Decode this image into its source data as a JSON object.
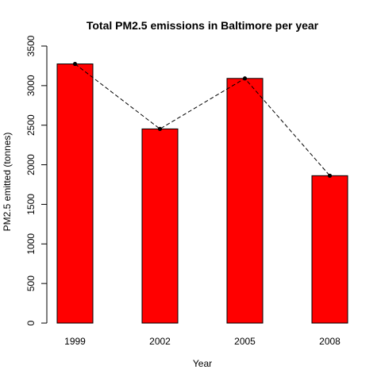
{
  "chart_data": {
    "type": "bar",
    "title": "Total PM2.5 emissions in Baltimore per year",
    "xlabel": "Year",
    "ylabel": "PM2.5 emitted (tonnes)",
    "categories": [
      "1999",
      "2002",
      "2005",
      "2008"
    ],
    "values": [
      3274,
      2453,
      3091,
      1862
    ],
    "ylim": [
      0,
      3500
    ],
    "yticks": [
      "0",
      "500",
      "1000",
      "1500",
      "2000",
      "2500",
      "3000",
      "3500"
    ],
    "bar_color": "#ff0000",
    "line_color": "#000000",
    "line_style": "dashed",
    "grid": false,
    "legend": "none"
  }
}
